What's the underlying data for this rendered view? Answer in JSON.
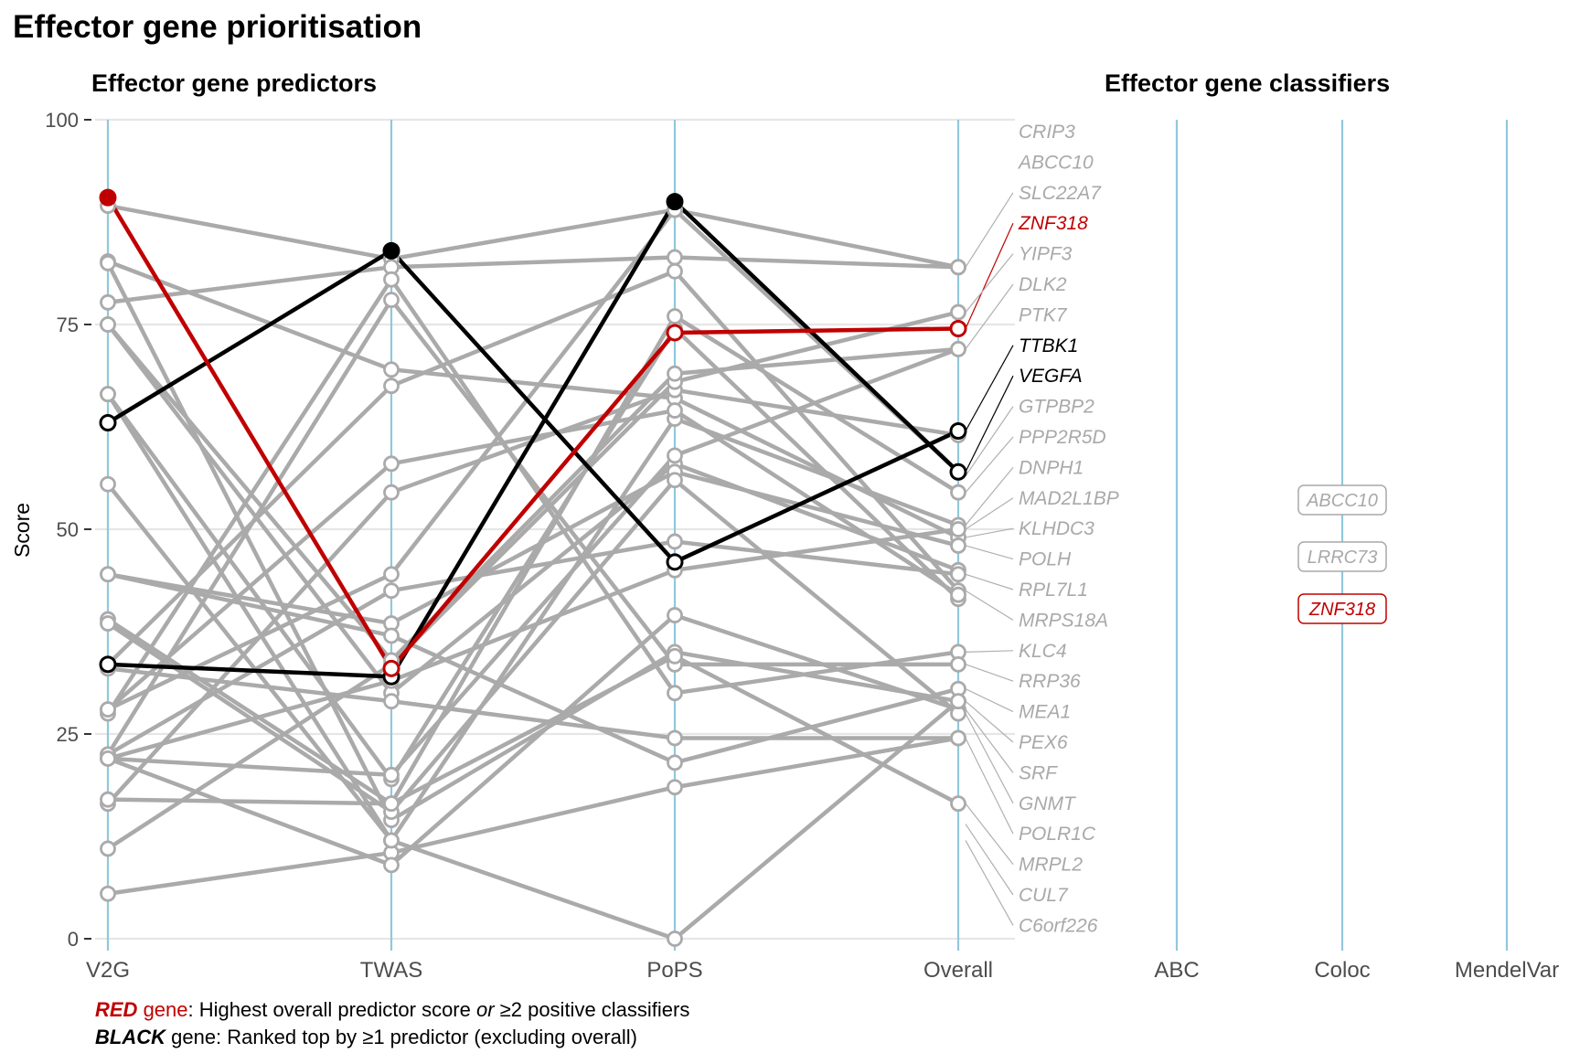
{
  "page_title": "Effector gene prioritisation",
  "panels": {
    "predictors_title": "Effector gene predictors",
    "classifiers_title": "Effector gene classifiers"
  },
  "colors": {
    "red": "#c00000",
    "black": "#000000",
    "grey": "#aaaaaa",
    "axis_line": "#90c8dc",
    "grid": "#e6e6e6"
  },
  "footnote": {
    "line1_key": "RED",
    "line1_word": " gene",
    "line1_text_a": ": Highest overall predictor score ",
    "line1_or": "or",
    "line1_text_b": " ≥2 positive classifiers",
    "line2_key": "BLACK",
    "line2_text": " gene: Ranked top by ≥1 predictor (excluding overall)"
  },
  "chart_data": {
    "type": "line",
    "title": "Effector gene prioritisation",
    "ylabel": "Score",
    "xlabel": "",
    "ylim": [
      0,
      100
    ],
    "yticks": [
      0,
      25,
      50,
      75,
      100
    ],
    "grid": true,
    "predictor_axes": [
      "V2G",
      "TWAS",
      "PoPS",
      "Overall"
    ],
    "classifier_axes": [
      "ABC",
      "Coloc",
      "MendelVar"
    ],
    "gene_labels": [
      {
        "gene": "CRIP3",
        "color": "grey"
      },
      {
        "gene": "ABCC10",
        "color": "grey"
      },
      {
        "gene": "SLC22A7",
        "color": "grey"
      },
      {
        "gene": "ZNF318",
        "color": "red"
      },
      {
        "gene": "YIPF3",
        "color": "grey"
      },
      {
        "gene": "DLK2",
        "color": "grey"
      },
      {
        "gene": "PTK7",
        "color": "grey"
      },
      {
        "gene": "TTBK1",
        "color": "black"
      },
      {
        "gene": "VEGFA",
        "color": "black"
      },
      {
        "gene": "GTPBP2",
        "color": "grey"
      },
      {
        "gene": "PPP2R5D",
        "color": "grey"
      },
      {
        "gene": "DNPH1",
        "color": "grey"
      },
      {
        "gene": "MAD2L1BP",
        "color": "grey"
      },
      {
        "gene": "KLHDC3",
        "color": "grey"
      },
      {
        "gene": "POLH",
        "color": "grey"
      },
      {
        "gene": "RPL7L1",
        "color": "grey"
      },
      {
        "gene": "MRPS18A",
        "color": "grey"
      },
      {
        "gene": "KLC4",
        "color": "grey"
      },
      {
        "gene": "RRP36",
        "color": "grey"
      },
      {
        "gene": "MEA1",
        "color": "grey"
      },
      {
        "gene": "PEX6",
        "color": "grey"
      },
      {
        "gene": "SRF",
        "color": "grey"
      },
      {
        "gene": "GNMT",
        "color": "grey"
      },
      {
        "gene": "POLR1C",
        "color": "grey"
      },
      {
        "gene": "MRPL2",
        "color": "grey"
      },
      {
        "gene": "CUL7",
        "color": "grey"
      },
      {
        "gene": "C6orf226",
        "color": "grey"
      }
    ],
    "series_grey": [
      [
        89.5,
        83.0,
        89.0,
        57.0
      ],
      [
        82.7,
        69.5,
        66.0,
        49.0
      ],
      [
        77.7,
        82.0,
        83.2,
        82.0
      ],
      [
        75.0,
        30.0,
        58.0,
        45.0
      ],
      [
        66.5,
        19.5,
        74.5,
        41.5
      ],
      [
        55.5,
        12.0,
        63.5,
        50.5
      ],
      [
        44.5,
        38.5,
        57.0,
        48.0
      ],
      [
        39.0,
        16.5,
        76.0,
        54.5
      ],
      [
        33.5,
        67.5,
        81.5,
        42.5
      ],
      [
        28.0,
        44.5,
        89.0,
        82.0
      ],
      [
        27.5,
        80.5,
        30.0,
        35.0
      ],
      [
        22.5,
        78.0,
        33.5,
        33.5
      ],
      [
        22.0,
        20.0,
        59.0,
        72.0
      ],
      [
        22.0,
        31.5,
        45.0,
        50.0
      ],
      [
        16.5,
        54.5,
        67.0,
        61.5
      ],
      [
        11.0,
        33.5,
        68.0,
        76.5
      ],
      [
        5.5,
        10.5,
        18.5,
        24.5
      ],
      [
        82.5,
        14.5,
        35.0,
        29.0
      ],
      [
        44.5,
        37.0,
        21.5,
        30.5
      ],
      [
        33.0,
        29.0,
        24.5,
        24.5
      ],
      [
        28.0,
        58.0,
        64.5,
        42.0
      ],
      [
        22.5,
        42.5,
        48.5,
        44.5
      ],
      [
        22.0,
        9.0,
        39.5,
        28.0
      ],
      [
        38.5,
        15.5,
        56.0,
        27.5
      ],
      [
        75.0,
        34.0,
        69.0,
        72.0
      ],
      [
        66.5,
        12.0,
        0.0,
        29.0
      ],
      [
        17.0,
        16.5,
        34.5,
        16.5
      ]
    ],
    "series_red": [
      {
        "name": "ZNF318",
        "values": [
          90.5,
          33.0,
          74.0,
          74.5
        ]
      }
    ],
    "series_black": [
      {
        "values": [
          63.0,
          84.0,
          46.0,
          62.0
        ]
      },
      {
        "values": [
          33.5,
          32.0,
          90.0,
          57.0
        ]
      }
    ],
    "classifier_genes": [
      {
        "axis": "Coloc",
        "gene": "ABCC10",
        "color": "grey"
      },
      {
        "axis": "Coloc",
        "gene": "LRRC73",
        "color": "grey"
      },
      {
        "axis": "Coloc",
        "gene": "ZNF318",
        "color": "red"
      }
    ]
  }
}
